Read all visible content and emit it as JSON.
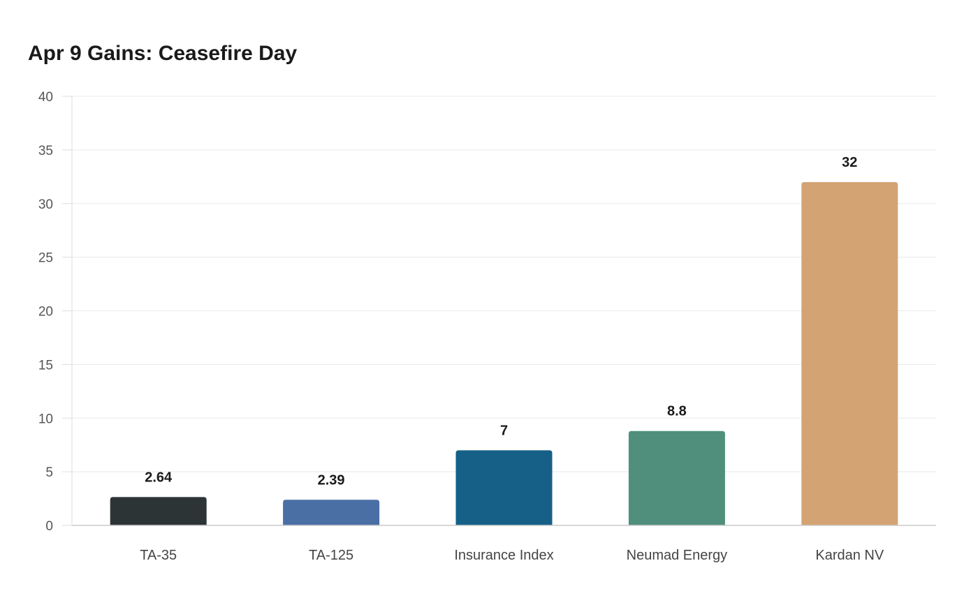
{
  "chart_data": {
    "type": "bar",
    "title": "Apr 9 Gains: Ceasefire Day",
    "xlabel": "",
    "ylabel": "",
    "categories": [
      "TA-35",
      "TA-125",
      "Insurance Index",
      "Neumad Energy",
      "Kardan NV"
    ],
    "values": [
      2.64,
      2.39,
      7,
      8.8,
      32
    ],
    "data_labels": [
      "2.64",
      "2.39",
      "7",
      "8.8",
      "32"
    ],
    "colors": [
      "#2d3436",
      "#4a6fa5",
      "#166088",
      "#4f8f7c",
      "#d4a373"
    ],
    "ylim": [
      0,
      40
    ],
    "yticks": [
      0,
      5,
      10,
      15,
      20,
      25,
      30,
      35,
      40
    ],
    "grid": true,
    "legend": "none"
  }
}
